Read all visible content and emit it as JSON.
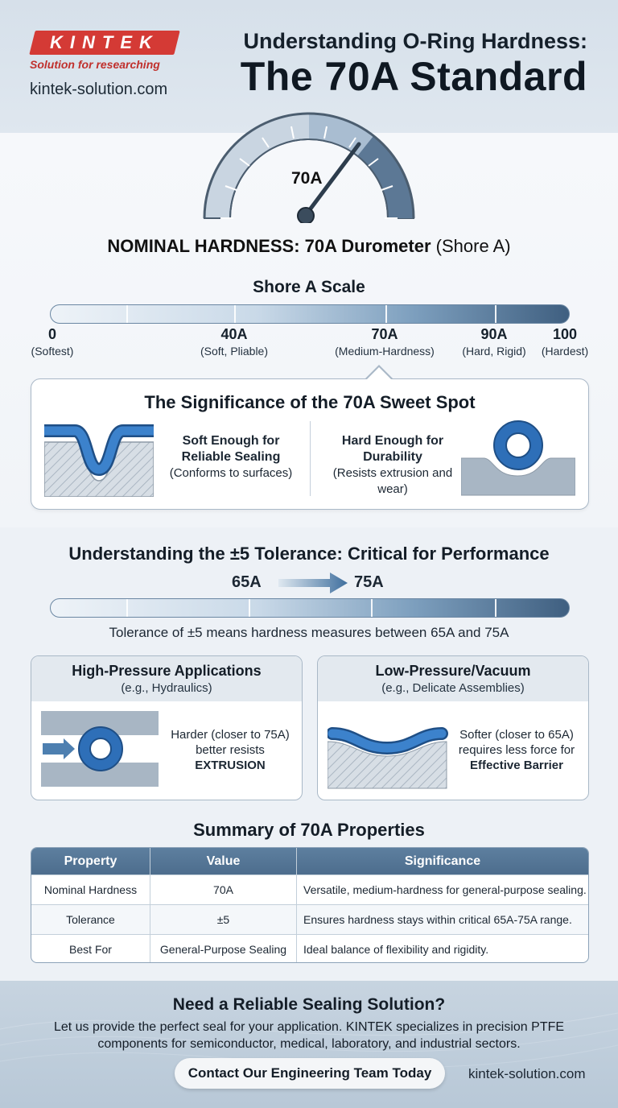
{
  "header": {
    "logo_text": "KINTEK",
    "tagline": "Solution for researching",
    "website": "kintek-solution.com",
    "title_line1": "Understanding O-Ring Hardness:",
    "title_line2": "The 70A Standard"
  },
  "gauge": {
    "value_label": "70A",
    "level_percent": 70,
    "caption_bold": "NOMINAL HARDNESS: 70A Durometer",
    "caption_light": "(Shore A)"
  },
  "scale": {
    "title": "Shore A Scale",
    "marks": [
      {
        "num": "0",
        "desc": "(Softest)"
      },
      {
        "num": "40A",
        "desc": "(Soft, Pliable)"
      },
      {
        "num": "70A",
        "desc": "(Medium-Hardness)"
      },
      {
        "num": "90A",
        "desc": "(Hard, Rigid)"
      },
      {
        "num": "100",
        "desc": "(Hardest)"
      }
    ]
  },
  "sweet_spot": {
    "title": "The Significance of the 70A Sweet Spot",
    "left_bold": "Soft Enough for Reliable Sealing",
    "left_desc": "(Conforms to surfaces)",
    "right_bold": "Hard Enough for Durability",
    "right_desc": "(Resists extrusion and wear)"
  },
  "tolerance": {
    "title": "Understanding the ±5 Tolerance: Critical for Performance",
    "low": "65A",
    "high": "75A",
    "description": "Tolerance of ±5 means hardness measures between 65A and 75A"
  },
  "applications": {
    "high": {
      "title": "High-Pressure Applications",
      "subtitle": "(e.g., Hydraulics)",
      "text": "Harder (closer to 75A) better resists",
      "emphasis": "EXTRUSION"
    },
    "low": {
      "title": "Low-Pressure/Vacuum",
      "subtitle": "(e.g., Delicate Assemblies)",
      "text": "Softer (closer to 65A) requires less force for",
      "emphasis": "Effective Barrier"
    }
  },
  "summary": {
    "title": "Summary of 70A Properties",
    "headers": [
      "Property",
      "Value",
      "Significance"
    ],
    "rows": [
      [
        "Nominal Hardness",
        "70A",
        "Versatile, medium-hardness for general-purpose sealing."
      ],
      [
        "Tolerance",
        "±5",
        "Ensures hardness stays within critical 65A-75A range."
      ],
      [
        "Best For",
        "General-Purpose Sealing",
        "Ideal balance of flexibility and rigidity."
      ]
    ]
  },
  "footer": {
    "title": "Need a Reliable Sealing Solution?",
    "body": "Let us provide the perfect seal for your application. KINTEK specializes in precision PTFE components for semiconductor, medical, laboratory, and industrial sectors.",
    "cta": "Contact Our Engineering Team Today",
    "website": "kintek-solution.com"
  },
  "colors": {
    "brand_red": "#d43a35",
    "seal_blue": "#2e6fb8",
    "scale_dark": "#3f5f80"
  }
}
